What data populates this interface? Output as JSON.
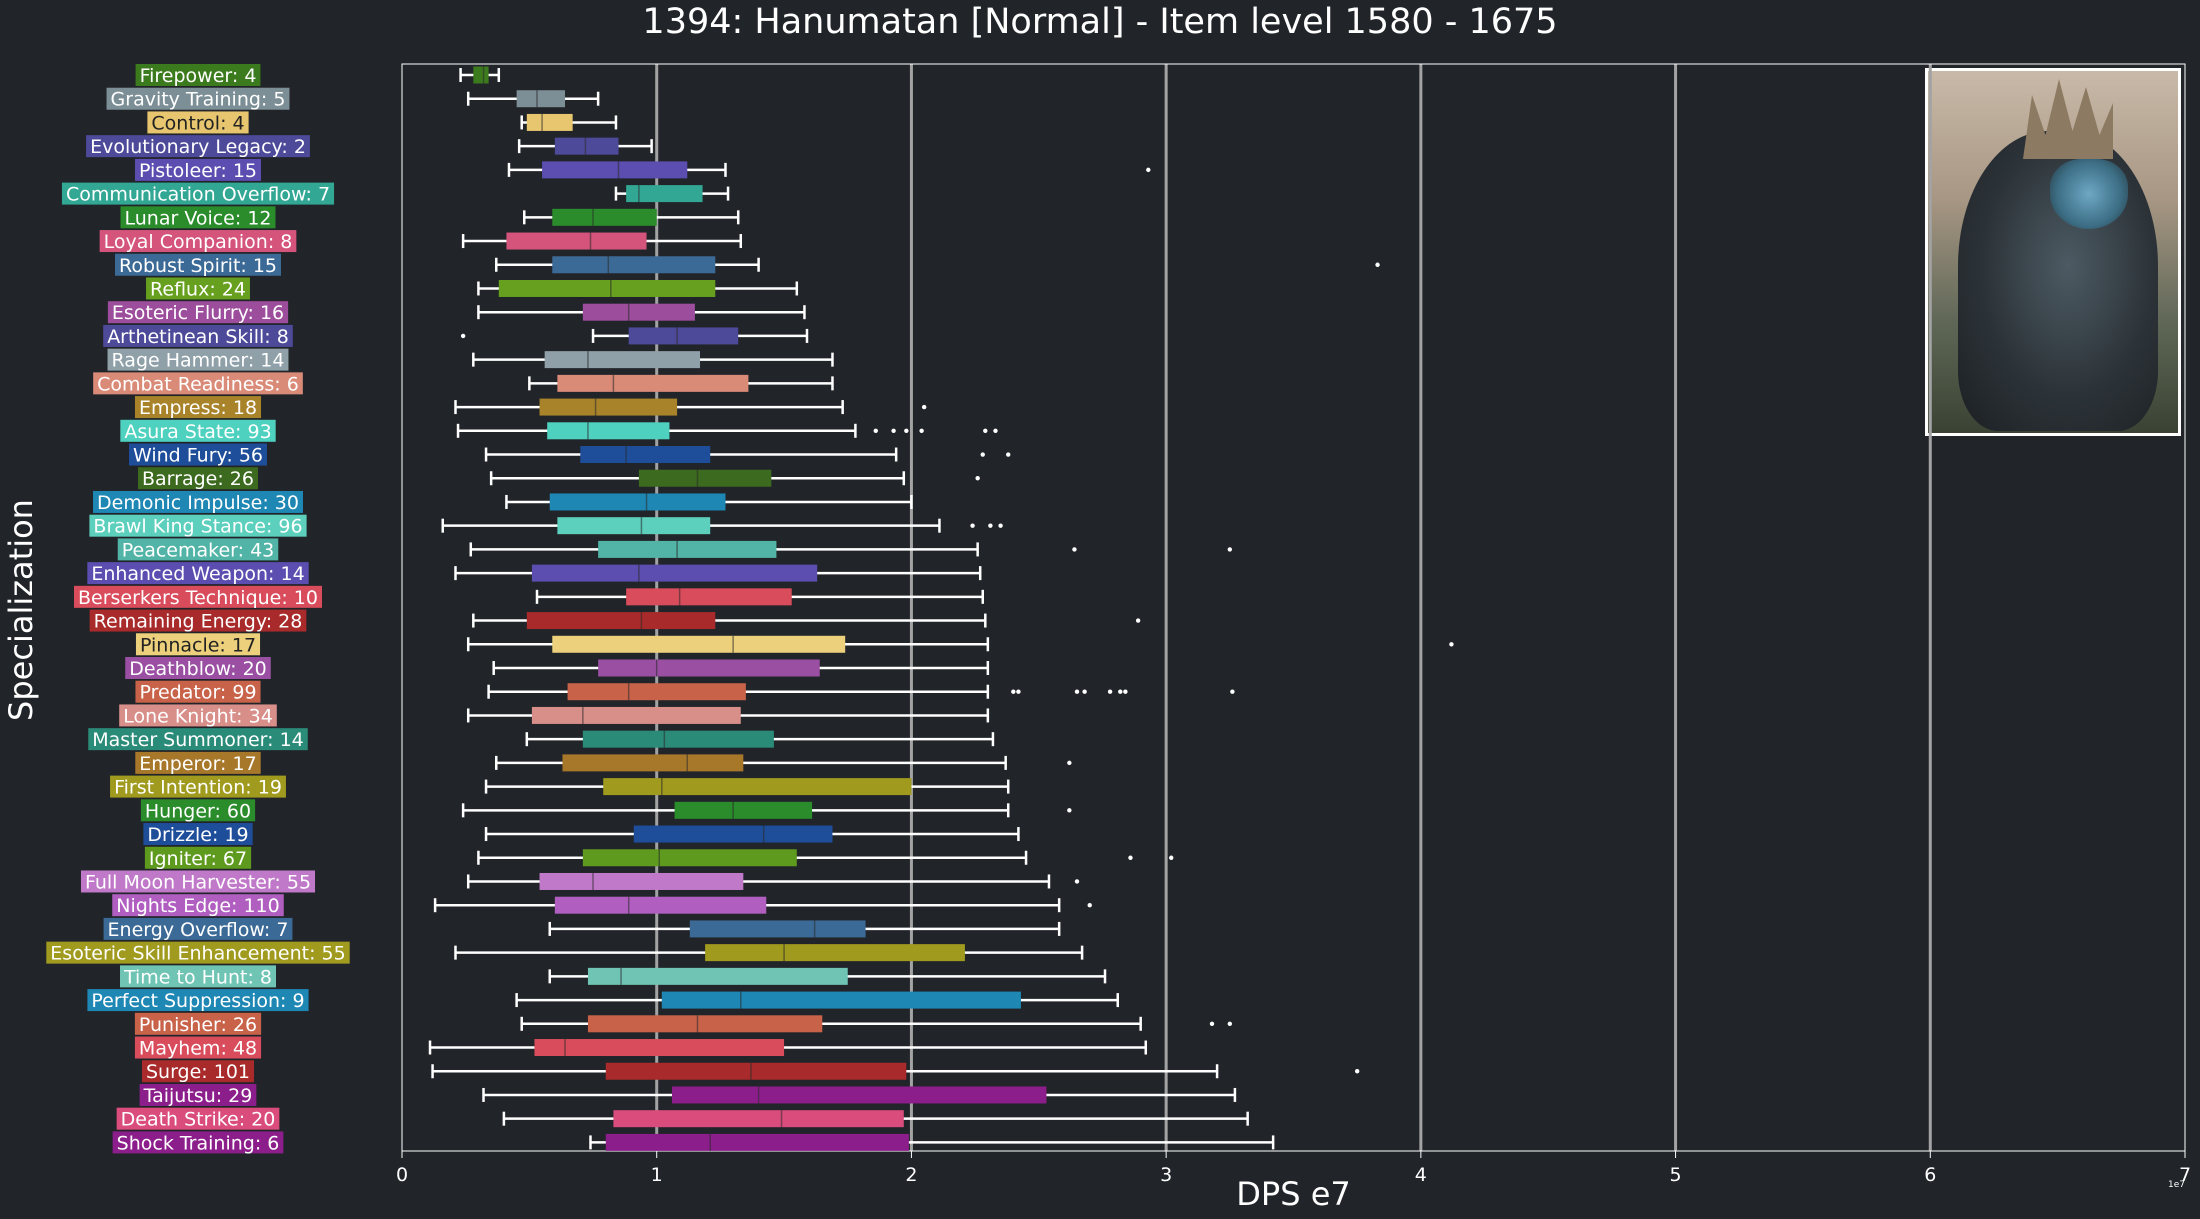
{
  "chart_data": {
    "type": "boxplot",
    "title": "1394: Hanumatan [Normal] - Item level 1580 - 1675",
    "xlabel": "DPS e7",
    "ylabel": "Specialization",
    "xlim": [
      0,
      7
    ],
    "x_ticks": [
      "0",
      "1",
      "2",
      "3",
      "4",
      "5",
      "6",
      "7"
    ],
    "x_scale_note": "1e7",
    "grid": "vertical lines at x = 1, 2, 3, 4, 5, 6",
    "image_note": "portrait of Hanumatan in the top-right corner",
    "series": [
      {
        "label": "Firepower: 4",
        "color": "#3c7a1e",
        "whisker": [
          0.23,
          0.38
        ],
        "box": [
          0.28,
          0.34
        ],
        "median": 0.32,
        "outliers": []
      },
      {
        "label": "Gravity Training: 5",
        "color": "#7d8f96",
        "whisker": [
          0.26,
          0.77
        ],
        "box": [
          0.45,
          0.64
        ],
        "median": 0.53,
        "outliers": []
      },
      {
        "label": "Control: 4",
        "color": "#e7c66f",
        "whisker": [
          0.47,
          0.84
        ],
        "box": [
          0.49,
          0.67
        ],
        "median": 0.55,
        "outliers": []
      },
      {
        "label": "Evolutionary Legacy: 2",
        "color": "#4e4a9a",
        "whisker": [
          0.46,
          0.98
        ],
        "box": [
          0.6,
          0.85
        ],
        "median": 0.72,
        "outliers": []
      },
      {
        "label": "Pistoleer: 15",
        "color": "#5b4eb0",
        "whisker": [
          0.42,
          1.27
        ],
        "box": [
          0.55,
          1.12
        ],
        "median": 0.85,
        "outliers": [
          2.93
        ]
      },
      {
        "label": "Communication Overflow: 7",
        "color": "#31a794",
        "whisker": [
          0.84,
          1.28
        ],
        "box": [
          0.88,
          1.18
        ],
        "median": 0.93,
        "outliers": []
      },
      {
        "label": "Lunar Voice: 12",
        "color": "#2a8c2a",
        "whisker": [
          0.48,
          1.32
        ],
        "box": [
          0.59,
          1.0
        ],
        "median": 0.75,
        "outliers": []
      },
      {
        "label": "Loyal Companion: 8",
        "color": "#d4547c",
        "whisker": [
          0.24,
          1.33
        ],
        "box": [
          0.41,
          0.96
        ],
        "median": 0.74,
        "outliers": []
      },
      {
        "label": "Robust Spirit: 15",
        "color": "#3c6a96",
        "whisker": [
          0.37,
          1.4
        ],
        "box": [
          0.59,
          1.23
        ],
        "median": 0.81,
        "outliers": [
          3.83
        ]
      },
      {
        "label": "Reflux: 24",
        "color": "#66a01e",
        "whisker": [
          0.3,
          1.55
        ],
        "box": [
          0.38,
          1.23
        ],
        "median": 0.82,
        "outliers": []
      },
      {
        "label": "Esoteric Flurry: 16",
        "color": "#9c4d9c",
        "whisker": [
          0.3,
          1.58
        ],
        "box": [
          0.71,
          1.15
        ],
        "median": 0.89,
        "outliers": []
      },
      {
        "label": "Arthetinean Skill: 8",
        "color": "#4e4a9a",
        "whisker": [
          0.75,
          1.59
        ],
        "box": [
          0.89,
          1.32
        ],
        "median": 1.08,
        "outliers": [
          0.24
        ]
      },
      {
        "label": "Rage Hammer: 14",
        "color": "#8fa0a8",
        "whisker": [
          0.28,
          1.69
        ],
        "box": [
          0.56,
          1.17
        ],
        "median": 0.73,
        "outliers": []
      },
      {
        "label": "Combat Readiness: 6",
        "color": "#d98b78",
        "whisker": [
          0.5,
          1.69
        ],
        "box": [
          0.61,
          1.36
        ],
        "median": 0.83,
        "outliers": []
      },
      {
        "label": "Empress: 18",
        "color": "#a8832a",
        "whisker": [
          0.21,
          1.73
        ],
        "box": [
          0.54,
          1.08
        ],
        "median": 0.76,
        "outliers": [
          2.05
        ]
      },
      {
        "label": "Asura State: 93",
        "color": "#4fd1c0",
        "whisker": [
          0.22,
          1.78
        ],
        "box": [
          0.57,
          1.05
        ],
        "median": 0.73,
        "outliers": [
          1.86,
          1.93,
          1.98,
          2.04,
          2.29,
          2.33
        ]
      },
      {
        "label": "Wind Fury: 56",
        "color": "#1e4e9a",
        "whisker": [
          0.33,
          1.94
        ],
        "box": [
          0.7,
          1.21
        ],
        "median": 0.88,
        "outliers": [
          2.28,
          2.38
        ]
      },
      {
        "label": "Barrage: 26",
        "color": "#3c6a1e",
        "whisker": [
          0.35,
          1.97
        ],
        "box": [
          0.93,
          1.45
        ],
        "median": 1.16,
        "outliers": [
          2.26
        ]
      },
      {
        "label": "Demonic Impulse: 30",
        "color": "#1e87b4",
        "whisker": [
          0.41,
          2.0
        ],
        "box": [
          0.58,
          1.27
        ],
        "median": 0.96,
        "outliers": []
      },
      {
        "label": "Brawl King Stance: 96",
        "color": "#5ccfbd",
        "whisker": [
          0.16,
          2.11
        ],
        "box": [
          0.61,
          1.21
        ],
        "median": 0.94,
        "outliers": [
          2.24,
          2.31,
          2.35
        ]
      },
      {
        "label": "Peacemaker: 43",
        "color": "#52b4a6",
        "whisker": [
          0.27,
          2.26
        ],
        "box": [
          0.77,
          1.47
        ],
        "median": 1.08,
        "outliers": [
          2.64,
          3.25
        ]
      },
      {
        "label": "Enhanced Weapon: 14",
        "color": "#5b4eb0",
        "whisker": [
          0.21,
          2.27
        ],
        "box": [
          0.51,
          1.63
        ],
        "median": 0.93,
        "outliers": []
      },
      {
        "label": "Berserkers Technique: 10",
        "color": "#d94c5c",
        "whisker": [
          0.53,
          2.28
        ],
        "box": [
          0.88,
          1.53
        ],
        "median": 1.09,
        "outliers": []
      },
      {
        "label": "Remaining Energy: 28",
        "color": "#a82a2a",
        "whisker": [
          0.28,
          2.29
        ],
        "box": [
          0.49,
          1.23
        ],
        "median": 0.94,
        "outliers": [
          2.89
        ]
      },
      {
        "label": "Pinnacle: 17",
        "color": "#ecd07c",
        "whisker": [
          0.26,
          2.3
        ],
        "box": [
          0.59,
          1.74
        ],
        "median": 1.3,
        "outliers": [
          4.12
        ]
      },
      {
        "label": "Deathblow: 20",
        "color": "#9a4fa3",
        "whisker": [
          0.36,
          2.3
        ],
        "box": [
          0.77,
          1.64
        ],
        "median": 1.0,
        "outliers": []
      },
      {
        "label": "Predator: 99",
        "color": "#c8634a",
        "whisker": [
          0.34,
          2.3
        ],
        "box": [
          0.65,
          1.35
        ],
        "median": 0.89,
        "outliers": [
          2.4,
          2.42,
          2.65,
          2.68,
          2.78,
          2.82,
          2.84,
          3.26
        ]
      },
      {
        "label": "Lone Knight: 34",
        "color": "#d88f8a",
        "whisker": [
          0.26,
          2.3
        ],
        "box": [
          0.51,
          1.33
        ],
        "median": 0.71,
        "outliers": []
      },
      {
        "label": "Master Summoner: 14",
        "color": "#2a8c78",
        "whisker": [
          0.49,
          2.32
        ],
        "box": [
          0.71,
          1.46
        ],
        "median": 1.03,
        "outliers": []
      },
      {
        "label": "Emperor: 17",
        "color": "#a8782a",
        "whisker": [
          0.37,
          2.37
        ],
        "box": [
          0.63,
          1.34
        ],
        "median": 1.12,
        "outliers": [
          2.62
        ]
      },
      {
        "label": "First Intention: 19",
        "color": "#a09a1e",
        "whisker": [
          0.33,
          2.38
        ],
        "box": [
          0.79,
          2.0
        ],
        "median": 1.02,
        "outliers": []
      },
      {
        "label": "Hunger: 60",
        "color": "#2a8c2a",
        "whisker": [
          0.24,
          2.38
        ],
        "box": [
          1.07,
          1.61
        ],
        "median": 1.3,
        "outliers": [
          2.62
        ]
      },
      {
        "label": "Drizzle: 19",
        "color": "#1e4e9a",
        "whisker": [
          0.33,
          2.42
        ],
        "box": [
          0.91,
          1.69
        ],
        "median": 1.42,
        "outliers": []
      },
      {
        "label": "Igniter: 67",
        "color": "#5e9a1e",
        "whisker": [
          0.3,
          2.45
        ],
        "box": [
          0.71,
          1.55
        ],
        "median": 1.01,
        "outliers": [
          2.86,
          3.02
        ]
      },
      {
        "label": "Full Moon Harvester: 55",
        "color": "#c079c8",
        "whisker": [
          0.26,
          2.54
        ],
        "box": [
          0.54,
          1.34
        ],
        "median": 0.75,
        "outliers": [
          2.65
        ]
      },
      {
        "label": "Nights Edge: 110",
        "color": "#b05fc0",
        "whisker": [
          0.13,
          2.58
        ],
        "box": [
          0.6,
          1.43
        ],
        "median": 0.89,
        "outliers": [
          2.7
        ]
      },
      {
        "label": "Energy Overflow: 7",
        "color": "#3c6a96",
        "whisker": [
          0.58,
          2.58
        ],
        "box": [
          1.13,
          1.82
        ],
        "median": 1.62,
        "outliers": []
      },
      {
        "label": "Esoteric Skill Enhancement: 55",
        "color": "#a09a1e",
        "whisker": [
          0.21,
          2.67
        ],
        "box": [
          1.19,
          2.21
        ],
        "median": 1.5,
        "outliers": []
      },
      {
        "label": "Time to Hunt: 8",
        "color": "#6fc4b4",
        "whisker": [
          0.58,
          2.76
        ],
        "box": [
          0.73,
          1.75
        ],
        "median": 0.86,
        "outliers": []
      },
      {
        "label": "Perfect Suppression: 9",
        "color": "#1e87b4",
        "whisker": [
          0.45,
          2.81
        ],
        "box": [
          1.02,
          2.43
        ],
        "median": 1.33,
        "outliers": []
      },
      {
        "label": "Punisher: 26",
        "color": "#c8634a",
        "whisker": [
          0.47,
          2.9
        ],
        "box": [
          0.73,
          1.65
        ],
        "median": 1.16,
        "outliers": [
          3.18,
          3.25
        ]
      },
      {
        "label": "Mayhem: 48",
        "color": "#d94c5c",
        "whisker": [
          0.11,
          2.92
        ],
        "box": [
          0.52,
          1.5
        ],
        "median": 0.64,
        "outliers": []
      },
      {
        "label": "Surge: 101",
        "color": "#a82a2a",
        "whisker": [
          0.12,
          3.2
        ],
        "box": [
          0.8,
          1.98
        ],
        "median": 1.37,
        "outliers": [
          3.75
        ]
      },
      {
        "label": "Taijutsu: 29",
        "color": "#8c1e8c",
        "whisker": [
          0.32,
          3.27
        ],
        "box": [
          1.06,
          2.53
        ],
        "median": 1.4,
        "outliers": []
      },
      {
        "label": "Death Strike: 20",
        "color": "#d94c7c",
        "whisker": [
          0.4,
          3.32
        ],
        "box": [
          0.83,
          1.97
        ],
        "median": 1.49,
        "outliers": []
      },
      {
        "label": "Shock Training: 6",
        "color": "#8c1e8c",
        "whisker": [
          0.74,
          3.42
        ],
        "box": [
          0.8,
          1.99
        ],
        "median": 1.21,
        "outliers": []
      }
    ]
  }
}
